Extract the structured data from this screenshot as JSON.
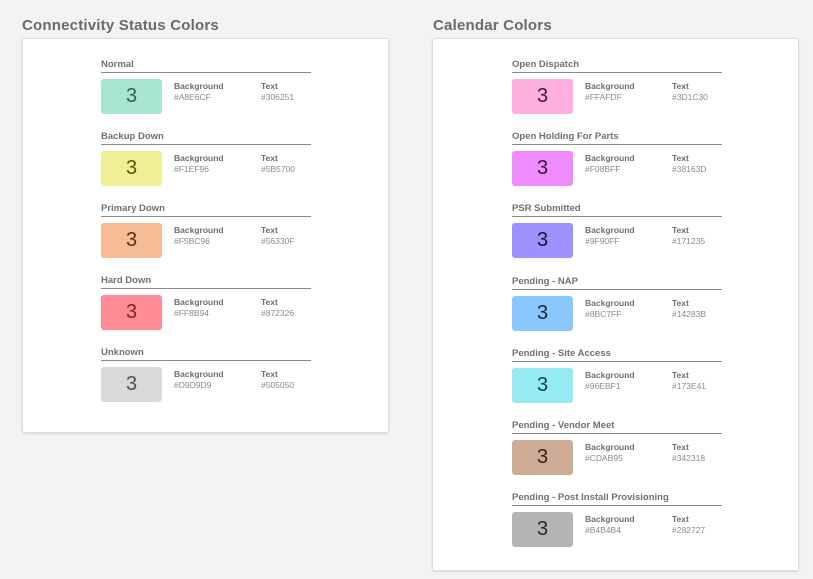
{
  "connectivity": {
    "title": "Connectivity Status Colors",
    "items": [
      {
        "name": "Normal",
        "sample": "3",
        "background": "#A8E6CF",
        "text": "#306251"
      },
      {
        "name": "Backup Down",
        "sample": "3",
        "background": "#F1EF96",
        "text": "#5B5700"
      },
      {
        "name": "Primary Down",
        "sample": "3",
        "background": "#F5BC96",
        "text": "#56330F"
      },
      {
        "name": "Hard Down",
        "sample": "3",
        "background": "#FF8B94",
        "text": "#872326"
      },
      {
        "name": "Unknown",
        "sample": "3",
        "background": "#D9D9D9",
        "text": "#505050"
      }
    ]
  },
  "calendar": {
    "title": "Calendar Colors",
    "items": [
      {
        "name": "Open Dispatch",
        "sample": "3",
        "background": "#FFAFDF",
        "text": "#3D1C30"
      },
      {
        "name": "Open Holding For Parts",
        "sample": "3",
        "background": "#F08BFF",
        "text": "#38163D"
      },
      {
        "name": "PSR Submitted",
        "sample": "3",
        "background": "#9F90FF",
        "text": "#171235"
      },
      {
        "name": "Pending - NAP",
        "sample": "3",
        "background": "#8BC7FF",
        "text": "#14283B"
      },
      {
        "name": "Pending - Site Access",
        "sample": "3",
        "background": "#96EBF1",
        "text": "#173E41"
      },
      {
        "name": "Pending - Vendor Meet",
        "sample": "3",
        "background": "#CDAB95",
        "text": "#342318"
      },
      {
        "name": "Pending - Post Install Provisioning",
        "sample": "3",
        "background": "#B4B4B4",
        "text": "#282727"
      }
    ]
  },
  "labels": {
    "background": "Background",
    "text": "Text"
  }
}
